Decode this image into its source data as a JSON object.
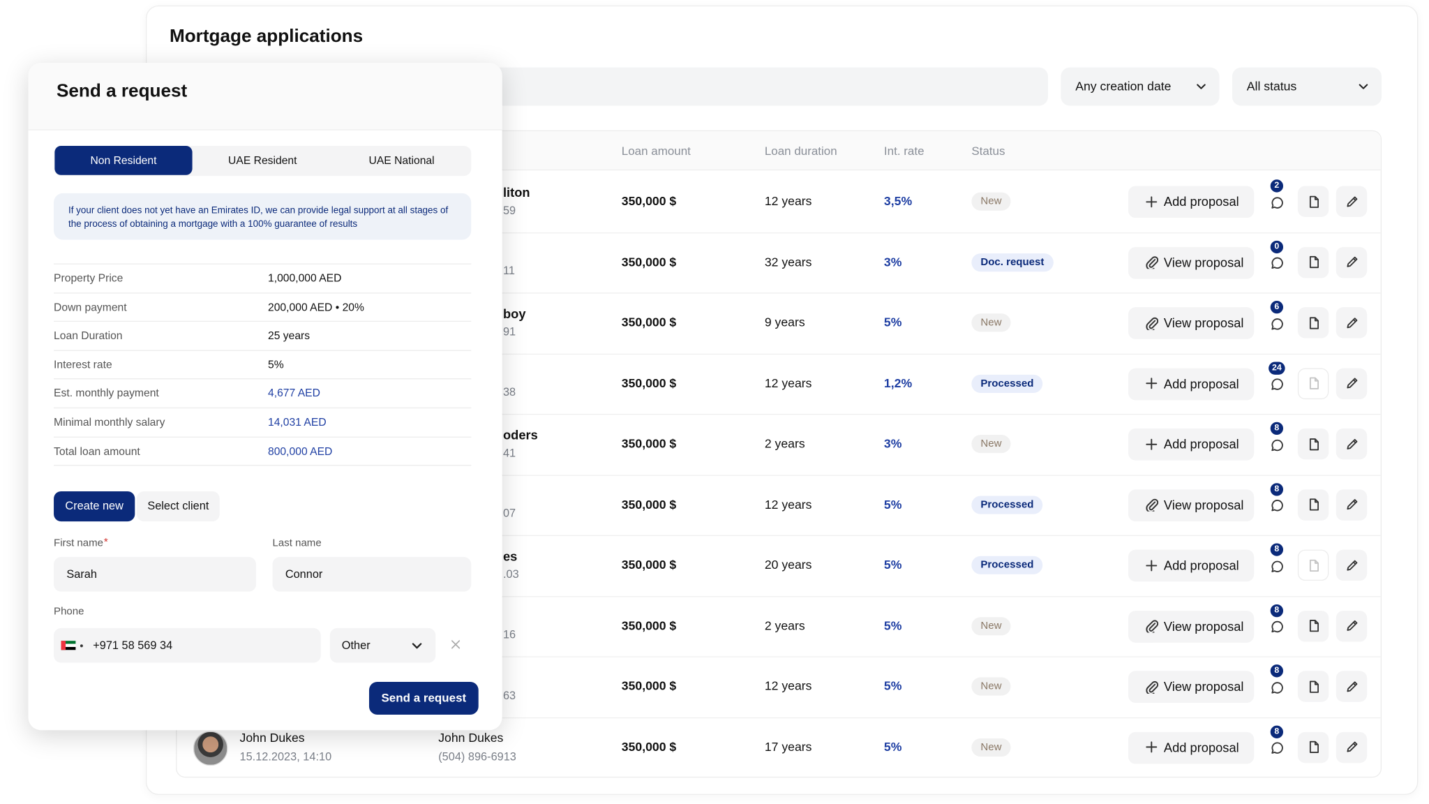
{
  "page": {
    "title": "Mortgage applications",
    "filters": [
      "Any creation date",
      "All status"
    ],
    "columns": [
      "Loan amount",
      "Loan duration",
      "Int. rate",
      "Status"
    ],
    "rows": [
      {
        "partial_name": "liton",
        "partial_phone": "59",
        "amount": "350,000 $",
        "duration": "12 years",
        "rate": "3,5%",
        "status": "New",
        "status_tone": "neutral",
        "action": "Add proposal",
        "action_icon": "plus",
        "messages": 2,
        "doc_disabled": false
      },
      {
        "partial_phone": "11",
        "amount": "350,000 $",
        "duration": "32 years",
        "rate": "3%",
        "status": "Doc. request",
        "status_tone": "accent",
        "action": "View proposal",
        "action_icon": "clip",
        "messages": 0,
        "doc_disabled": false
      },
      {
        "partial_name": "boy",
        "partial_phone": "91",
        "amount": "350,000 $",
        "duration": "9 years",
        "rate": "5%",
        "status": "New",
        "status_tone": "neutral",
        "action": "View proposal",
        "action_icon": "clip",
        "messages": 6,
        "doc_disabled": false
      },
      {
        "partial_phone": "38",
        "amount": "350,000 $",
        "duration": "12 years",
        "rate": "1,2%",
        "status": "Processed",
        "status_tone": "accent",
        "action": "Add proposal",
        "action_icon": "plus",
        "messages": 24,
        "doc_disabled": true
      },
      {
        "partial_name": "oders",
        "partial_phone": "41",
        "amount": "350,000 $",
        "duration": "2 years",
        "rate": "3%",
        "status": "New",
        "status_tone": "neutral",
        "action": "Add proposal",
        "action_icon": "plus",
        "messages": 8,
        "doc_disabled": false
      },
      {
        "partial_phone": "07",
        "amount": "350,000 $",
        "duration": "12 years",
        "rate": "5%",
        "status": "Processed",
        "status_tone": "accent",
        "action": "View proposal",
        "action_icon": "clip",
        "messages": 8,
        "doc_disabled": false
      },
      {
        "partial_name": "es",
        "partial_phone": ".03",
        "amount": "350,000 $",
        "duration": "20 years",
        "rate": "5%",
        "status": "Processed",
        "status_tone": "accent",
        "action": "Add proposal",
        "action_icon": "plus",
        "messages": 8,
        "doc_disabled": true
      },
      {
        "partial_phone": "16",
        "amount": "350,000 $",
        "duration": "2 years",
        "rate": "5%",
        "status": "New",
        "status_tone": "neutral",
        "action": "View proposal",
        "action_icon": "clip",
        "messages": 8,
        "doc_disabled": false
      },
      {
        "partial_phone": "63",
        "amount": "350,000 $",
        "duration": "12 years",
        "rate": "5%",
        "status": "New",
        "status_tone": "neutral",
        "action": "View proposal",
        "action_icon": "clip",
        "messages": 8,
        "doc_disabled": false
      },
      {
        "client": "John Dukes",
        "date": "15.12.2023, 14:10",
        "name": "John Dukes",
        "phone": "(504) 896-6913",
        "amount": "350,000 $",
        "duration": "17 years",
        "rate": "5%",
        "status": "New",
        "status_tone": "neutral",
        "action": "Add proposal",
        "action_icon": "plus",
        "messages": 8,
        "doc_disabled": false
      }
    ]
  },
  "modal": {
    "title": "Send a request",
    "tabs": [
      "Non Resident",
      "UAE Resident",
      "UAE National"
    ],
    "info": "If your client does not yet have an Emirates ID, we can provide legal support at all stages of the process of obtaining a mortgage with a 100% guarantee of results",
    "details": [
      {
        "label": "Property Price",
        "value": "1,000,000 AED",
        "highlight": false
      },
      {
        "label": "Down payment",
        "value": "200,000 AED • 20%",
        "highlight": false
      },
      {
        "label": "Loan Duration",
        "value": "25 years",
        "highlight": false
      },
      {
        "label": "Interest rate",
        "value": "5%",
        "highlight": false
      },
      {
        "label": "Est. monthly payment",
        "value": "4,677 AED",
        "highlight": true
      },
      {
        "label": "Minimal monthly salary",
        "value": "14,031 AED",
        "highlight": true
      },
      {
        "label": "Total loan amount",
        "value": "800,000 AED",
        "highlight": true
      }
    ],
    "client_tabs": [
      "Create new",
      "Select client"
    ],
    "first_name_label": "First name",
    "required_mark": "*",
    "last_name_label": "Last name",
    "first_name": "Sarah",
    "last_name": "Connor",
    "phone_label": "Phone",
    "phone": "+971 58 569 34",
    "phone_type": "Other",
    "submit": "Send a request"
  }
}
